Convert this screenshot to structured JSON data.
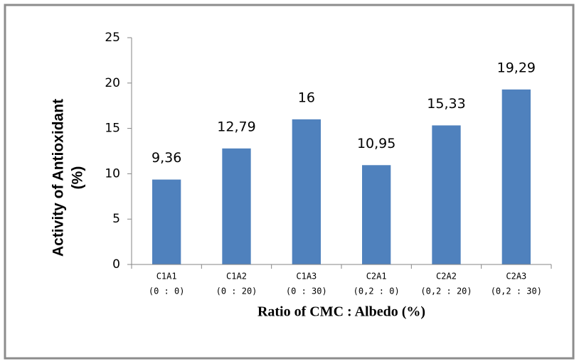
{
  "chart_data": {
    "type": "bar",
    "x_label": "Ratio of  CMC : Albedo (%)",
    "y_label": [
      "Activity of Antioxidant",
      "(%)"
    ],
    "categories": [
      [
        "C1A1",
        "(0 : 0)"
      ],
      [
        "C1A2",
        "(0 : 20)"
      ],
      [
        "C1A3",
        "(0 : 30)"
      ],
      [
        "C2A1",
        "(0,2 : 0)"
      ],
      [
        "C2A2",
        "(0,2 : 20)"
      ],
      [
        "C2A3",
        "(0,2 : 30)"
      ]
    ],
    "values": [
      9.36,
      12.79,
      16,
      10.95,
      15.33,
      19.29
    ],
    "value_labels": [
      "9,36",
      "12,79",
      "16",
      "10,95",
      "15,33",
      "19,29"
    ],
    "color": "#4f81bd",
    "ylim": [
      0,
      25
    ],
    "yticks": [
      0,
      5,
      10,
      15,
      20,
      25
    ],
    "grid": false
  }
}
